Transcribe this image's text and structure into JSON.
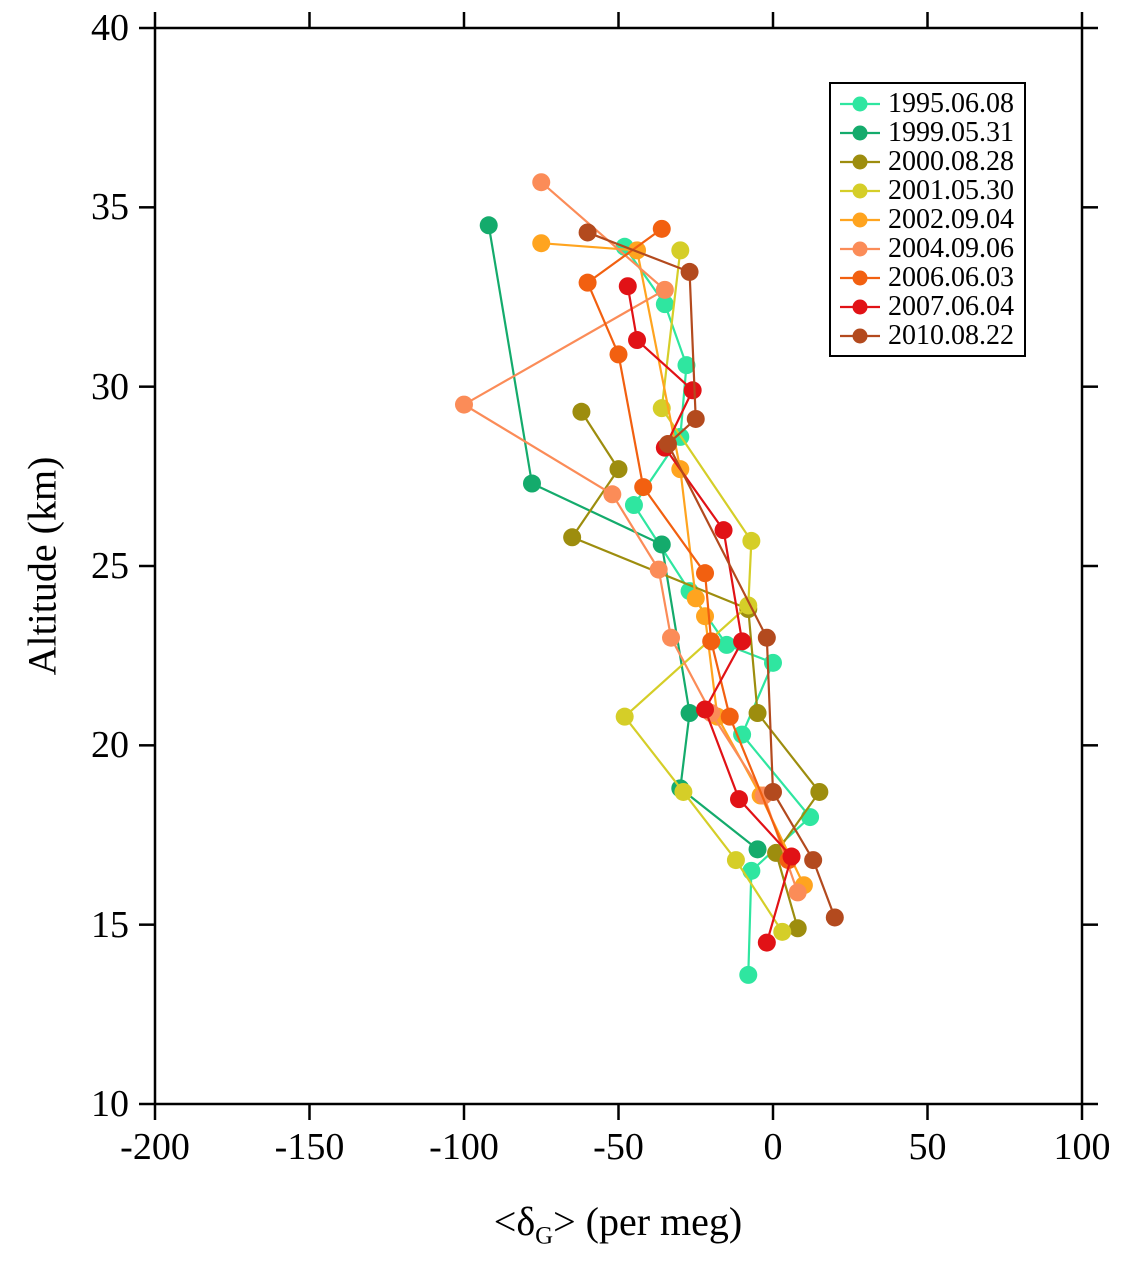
{
  "chart_data": {
    "type": "line",
    "title": "",
    "xlabel_prefix": "<δ",
    "xlabel_sub": "G",
    "xlabel_suffix": "> (per meg)",
    "ylabel": "Altitude (km)",
    "xlim": [
      -200,
      100
    ],
    "ylim": [
      10,
      40
    ],
    "xticks": [
      -200,
      -150,
      -100,
      -50,
      0,
      50,
      100
    ],
    "yticks": [
      10,
      15,
      20,
      25,
      30,
      35,
      40
    ],
    "grid": false,
    "legend_position": "top-right-inside",
    "marker": "circle",
    "series": [
      {
        "name": "1995.06.08",
        "color": "#2fe6a0",
        "points": [
          [
            -48,
            33.9
          ],
          [
            -35,
            32.3
          ],
          [
            -28,
            30.6
          ],
          [
            -30,
            28.6
          ],
          [
            -45,
            26.7
          ],
          [
            -27,
            24.3
          ],
          [
            -15,
            22.8
          ],
          [
            0,
            22.3
          ],
          [
            -10,
            20.3
          ],
          [
            12,
            18.0
          ],
          [
            -7,
            16.5
          ],
          [
            -8,
            13.6
          ]
        ]
      },
      {
        "name": "1999.05.31",
        "color": "#14ab6c",
        "points": [
          [
            -92,
            34.5
          ],
          [
            -78,
            27.3
          ],
          [
            -36,
            25.6
          ],
          [
            -27,
            20.9
          ],
          [
            -30,
            18.8
          ],
          [
            -5,
            17.1
          ]
        ]
      },
      {
        "name": "2000.08.28",
        "color": "#9d8d0e",
        "points": [
          [
            -62,
            29.3
          ],
          [
            -50,
            27.7
          ],
          [
            -65,
            25.8
          ],
          [
            -8,
            23.8
          ],
          [
            -5,
            20.9
          ],
          [
            15,
            18.7
          ],
          [
            1,
            17.0
          ],
          [
            8,
            14.9
          ]
        ]
      },
      {
        "name": "2001.05.30",
        "color": "#d5ce28",
        "points": [
          [
            -30,
            33.8
          ],
          [
            -36,
            29.4
          ],
          [
            -7,
            25.7
          ],
          [
            -8,
            23.9
          ],
          [
            -48,
            20.8
          ],
          [
            -29,
            18.7
          ],
          [
            -12,
            16.8
          ],
          [
            3,
            14.8
          ]
        ]
      },
      {
        "name": "2002.09.04",
        "color": "#ffa41f",
        "points": [
          [
            -75,
            34.0
          ],
          [
            -44,
            33.8
          ],
          [
            -30,
            27.7
          ],
          [
            -25,
            24.1
          ],
          [
            -22,
            23.6
          ],
          [
            -18,
            20.8
          ],
          [
            -4,
            18.6
          ],
          [
            10,
            16.1
          ]
        ]
      },
      {
        "name": "2004.09.06",
        "color": "#fb8c58",
        "points": [
          [
            -75,
            35.7
          ],
          [
            -35,
            32.7
          ],
          [
            -100,
            29.5
          ],
          [
            -52,
            27.0
          ],
          [
            -37,
            24.9
          ],
          [
            -33,
            23.0
          ],
          [
            -20,
            20.9
          ],
          [
            -3,
            18.6
          ],
          [
            8,
            15.9
          ]
        ]
      },
      {
        "name": "2006.06.03",
        "color": "#f26010",
        "points": [
          [
            -36,
            34.4
          ],
          [
            -60,
            32.9
          ],
          [
            -50,
            30.9
          ],
          [
            -42,
            27.2
          ],
          [
            -22,
            24.8
          ],
          [
            -20,
            22.9
          ],
          [
            -14,
            20.8
          ],
          [
            5,
            16.8
          ]
        ]
      },
      {
        "name": "2007.06.04",
        "color": "#e11216",
        "points": [
          [
            -47,
            32.8
          ],
          [
            -44,
            31.3
          ],
          [
            -26,
            29.9
          ],
          [
            -35,
            28.3
          ],
          [
            -16,
            26.0
          ],
          [
            -10,
            22.9
          ],
          [
            -22,
            21.0
          ],
          [
            -11,
            18.5
          ],
          [
            6,
            16.9
          ],
          [
            -2,
            14.5
          ]
        ]
      },
      {
        "name": "2010.08.22",
        "color": "#b34a1e",
        "points": [
          [
            -60,
            34.3
          ],
          [
            -27,
            33.2
          ],
          [
            -25,
            29.1
          ],
          [
            -34,
            28.4
          ],
          [
            -2,
            23.0
          ],
          [
            0,
            18.7
          ],
          [
            13,
            16.8
          ],
          [
            20,
            15.2
          ]
        ]
      }
    ]
  }
}
